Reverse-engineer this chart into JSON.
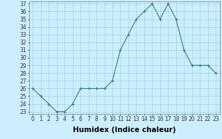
{
  "x": [
    0,
    1,
    2,
    3,
    4,
    5,
    6,
    7,
    8,
    9,
    10,
    11,
    12,
    13,
    14,
    15,
    16,
    17,
    18,
    19,
    20,
    21,
    22,
    23
  ],
  "y": [
    26,
    25,
    24,
    23,
    23,
    24,
    26,
    26,
    26,
    26,
    27,
    31,
    33,
    35,
    36,
    37,
    35,
    37,
    35,
    31,
    29,
    29,
    29,
    28
  ],
  "xlabel": "Humidex (Indice chaleur)",
  "ylim": [
    23,
    37
  ],
  "xlim": [
    -0.5,
    23.5
  ],
  "yticks": [
    23,
    24,
    25,
    26,
    27,
    28,
    29,
    30,
    31,
    32,
    33,
    34,
    35,
    36,
    37
  ],
  "xticks": [
    0,
    1,
    2,
    3,
    4,
    5,
    6,
    7,
    8,
    9,
    10,
    11,
    12,
    13,
    14,
    15,
    16,
    17,
    18,
    19,
    20,
    21,
    22,
    23
  ],
  "line_color": "#2e7d6e",
  "marker": "+",
  "bg_color": "#cceeff",
  "grid_color": "#99cccc",
  "axis_fontsize": 6.5,
  "tick_fontsize": 5.5,
  "xlabel_fontsize": 7.5
}
